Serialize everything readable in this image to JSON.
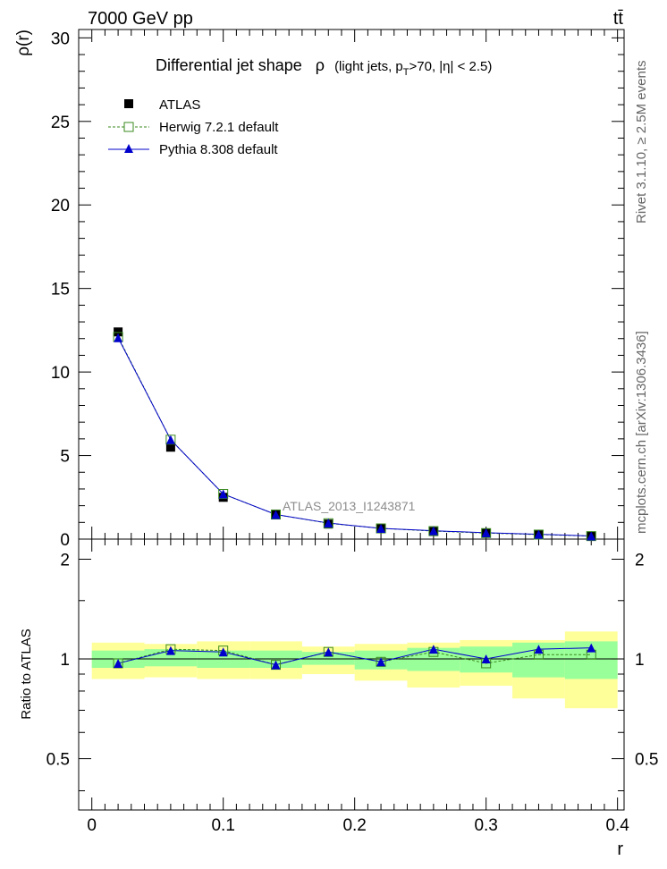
{
  "header": {
    "left_label": "7000 GeV pp",
    "right_label": "tt̄"
  },
  "side_labels": {
    "rivet": "Rivet 3.1.10, ≥ 2.5M events",
    "mcplots": "mcplots.cern.ch [arXiv:1306.3436]"
  },
  "plot_title": {
    "main": "Differential jet shape",
    "rho": "ρ",
    "detail_open": "(light jets, p",
    "detail_sub": "T",
    "detail_close": ">70, |η| < 2.5)"
  },
  "watermark": "ATLAS_2013_I1243871",
  "legend": [
    {
      "label": "ATLAS",
      "marker": "square-filled",
      "color": "#000000"
    },
    {
      "label": "Herwig 7.2.1 default",
      "marker": "square-open",
      "color": "#3a8a1c",
      "dash": true
    },
    {
      "label": "Pythia 8.308 default",
      "marker": "triangle-filled",
      "color": "#0000cc"
    }
  ],
  "colors": {
    "atlas": "#000000",
    "herwig": "#3a8a1c",
    "pythia": "#0000cc",
    "band_inner": "#99ff99",
    "band_outer": "#ffff99"
  },
  "chart_data": [
    {
      "type": "scatter",
      "xlabel": "",
      "ylabel": "ρ(r)",
      "xlim": [
        -0.01,
        0.405
      ],
      "ylim": [
        0,
        30.5
      ],
      "yticks": [
        0,
        5,
        10,
        15,
        20,
        25,
        30
      ],
      "x": [
        0.02,
        0.06,
        0.1,
        0.14,
        0.18,
        0.22,
        0.26,
        0.3,
        0.34,
        0.38
      ],
      "series": [
        {
          "name": "ATLAS",
          "values": [
            12.4,
            5.5,
            2.5,
            1.5,
            0.9,
            0.65,
            0.45,
            0.37,
            0.26,
            0.17
          ]
        },
        {
          "name": "Herwig 7.2.1 default",
          "values": [
            12.1,
            5.95,
            2.7,
            1.47,
            0.95,
            0.64,
            0.48,
            0.36,
            0.27,
            0.18
          ]
        },
        {
          "name": "Pythia 8.308 default",
          "values": [
            12.05,
            5.95,
            2.7,
            1.47,
            0.96,
            0.64,
            0.5,
            0.38,
            0.29,
            0.19
          ]
        }
      ]
    },
    {
      "type": "scatter",
      "xlabel": "r",
      "ylabel": "Ratio to ATLAS",
      "xlim": [
        -0.01,
        0.405
      ],
      "ylim": [
        0.35,
        2.3
      ],
      "yticks": [
        0.5,
        1,
        2
      ],
      "xticks": [
        0,
        0.1,
        0.2,
        0.3,
        0.4
      ],
      "x": [
        0.02,
        0.06,
        0.1,
        0.14,
        0.18,
        0.22,
        0.26,
        0.3,
        0.34,
        0.38
      ],
      "bands": {
        "inner": [
          [
            0.94,
            1.06
          ],
          [
            0.95,
            1.07
          ],
          [
            0.94,
            1.06
          ],
          [
            0.94,
            1.06
          ],
          [
            0.96,
            1.05
          ],
          [
            0.93,
            1.06
          ],
          [
            0.92,
            1.08
          ],
          [
            0.91,
            1.09
          ],
          [
            0.88,
            1.12
          ],
          [
            0.87,
            1.13
          ]
        ],
        "outer": [
          [
            0.87,
            1.12
          ],
          [
            0.88,
            1.11
          ],
          [
            0.87,
            1.13
          ],
          [
            0.87,
            1.13
          ],
          [
            0.9,
            1.09
          ],
          [
            0.86,
            1.11
          ],
          [
            0.82,
            1.12
          ],
          [
            0.83,
            1.14
          ],
          [
            0.76,
            1.14
          ],
          [
            0.71,
            1.21
          ]
        ]
      },
      "series": [
        {
          "name": "Herwig 7.2.1 default",
          "values": [
            0.97,
            1.07,
            1.06,
            0.96,
            1.05,
            0.98,
            1.05,
            0.97,
            1.03,
            1.03
          ]
        },
        {
          "name": "Pythia 8.308 default",
          "values": [
            0.97,
            1.06,
            1.05,
            0.96,
            1.05,
            0.98,
            1.07,
            1.0,
            1.07,
            1.08
          ]
        }
      ]
    }
  ]
}
